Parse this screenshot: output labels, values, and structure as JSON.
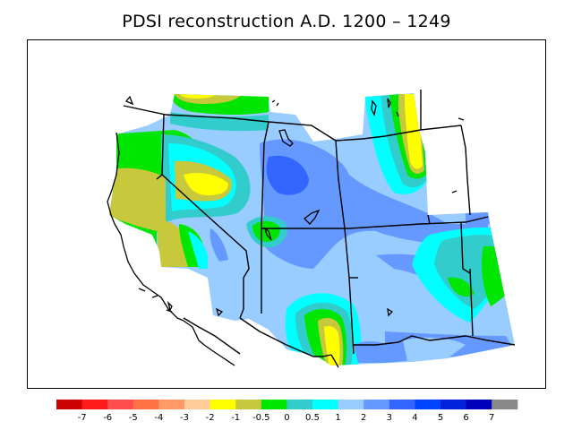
{
  "title": "PDSI reconstruction A.D. 1200 – 1249",
  "colors": {
    "c01": "#cc0000",
    "c02": "#ff1a1a",
    "c03": "#ff4d4d",
    "c04": "#ff7043",
    "c05": "#ff9966",
    "c06": "#ffcc99",
    "c07": "#ffff00",
    "c08": "#c8c83c",
    "c09": "#00e600",
    "c10": "#33cccc",
    "c11": "#00ffff",
    "c12": "#99ccff",
    "c13": "#6699ff",
    "c14": "#3366ff",
    "c15": "#0044ff",
    "c16": "#0022dd",
    "c17": "#0000bb",
    "c18": "#888888"
  },
  "legend": {
    "boxes": [
      "#cc0000",
      "#ff1a1a",
      "#ff4d4d",
      "#ff7043",
      "#ff9966",
      "#ffcc99",
      "#ffff00",
      "#c8c83c",
      "#00e600",
      "#33cccc",
      "#00ffff",
      "#99ccff",
      "#6699ff",
      "#3366ff",
      "#0044ff",
      "#0022dd",
      "#0000bb",
      "#888888"
    ],
    "labels": [
      "-7",
      "-6",
      "-5",
      "-4",
      "-3",
      "-2",
      "-1",
      "-0.5",
      "0",
      "0.5",
      "1",
      "2",
      "3",
      "4",
      "5",
      "6",
      "7"
    ]
  }
}
